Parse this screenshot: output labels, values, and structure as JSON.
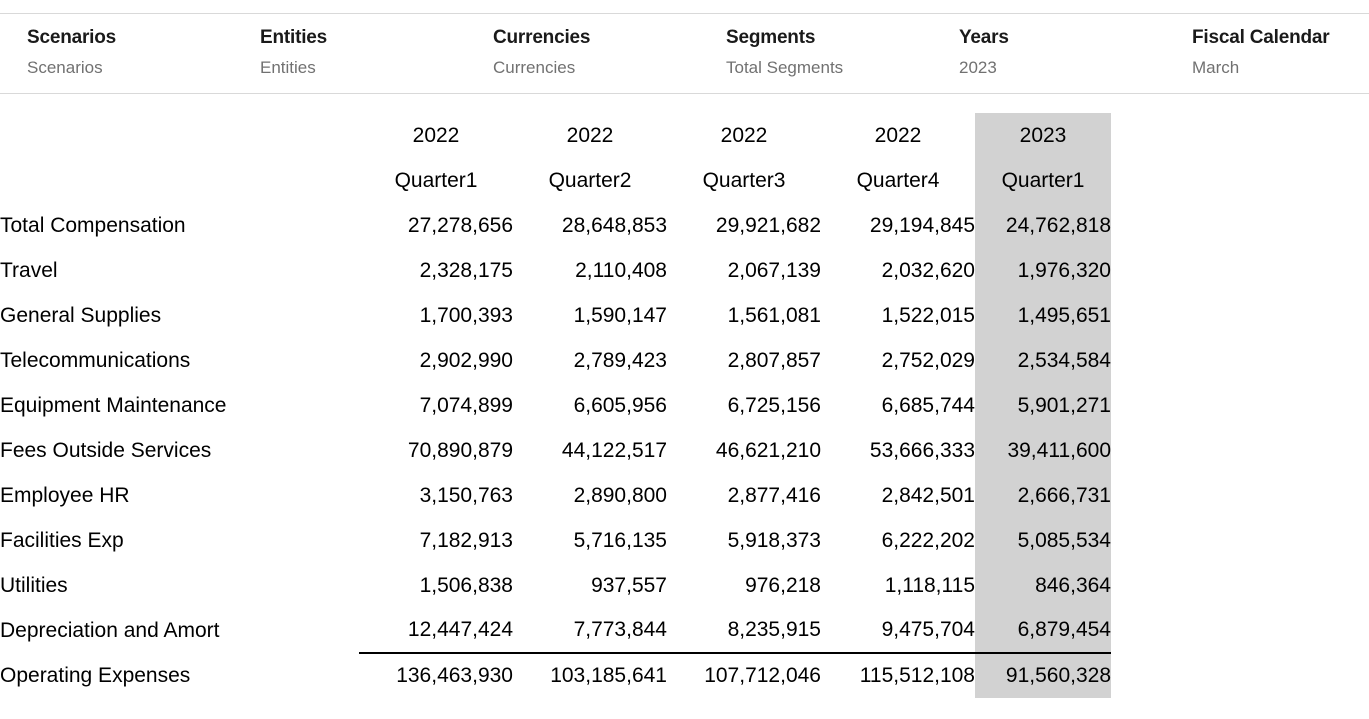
{
  "pov": {
    "items": [
      {
        "id": "scenarios",
        "label": "Scenarios",
        "value": "Scenarios"
      },
      {
        "id": "entities",
        "label": "Entities",
        "value": "Entities"
      },
      {
        "id": "currencies",
        "label": "Currencies",
        "value": "Currencies"
      },
      {
        "id": "segments",
        "label": "Segments",
        "value": "Total Segments"
      },
      {
        "id": "years",
        "label": "Years",
        "value": "2023"
      },
      {
        "id": "fiscal-calendar",
        "label": "Fiscal Calendar",
        "value": "March"
      }
    ]
  },
  "colors": {
    "highlight_column": "#d2d2d2",
    "pov_border": "#d9d9d9",
    "pov_value_text": "#717171",
    "total_rule": "#000000"
  },
  "table": {
    "column_headers": [
      {
        "year": "2022",
        "quarter": "Quarter1",
        "highlight": false
      },
      {
        "year": "2022",
        "quarter": "Quarter2",
        "highlight": false
      },
      {
        "year": "2022",
        "quarter": "Quarter3",
        "highlight": false
      },
      {
        "year": "2022",
        "quarter": "Quarter4",
        "highlight": false
      },
      {
        "year": "2023",
        "quarter": "Quarter1",
        "highlight": true
      }
    ],
    "rows": [
      {
        "label": "Total Compensation",
        "values": [
          "27,278,656",
          "28,648,853",
          "29,921,682",
          "29,194,845",
          "24,762,818"
        ],
        "is_total": false
      },
      {
        "label": "Travel",
        "values": [
          "2,328,175",
          "2,110,408",
          "2,067,139",
          "2,032,620",
          "1,976,320"
        ],
        "is_total": false
      },
      {
        "label": "General Supplies",
        "values": [
          "1,700,393",
          "1,590,147",
          "1,561,081",
          "1,522,015",
          "1,495,651"
        ],
        "is_total": false
      },
      {
        "label": "Telecommunications",
        "values": [
          "2,902,990",
          "2,789,423",
          "2,807,857",
          "2,752,029",
          "2,534,584"
        ],
        "is_total": false
      },
      {
        "label": "Equipment Maintenance",
        "values": [
          "7,074,899",
          "6,605,956",
          "6,725,156",
          "6,685,744",
          "5,901,271"
        ],
        "is_total": false
      },
      {
        "label": "Fees Outside Services",
        "values": [
          "70,890,879",
          "44,122,517",
          "46,621,210",
          "53,666,333",
          "39,411,600"
        ],
        "is_total": false
      },
      {
        "label": "Employee HR",
        "values": [
          "3,150,763",
          "2,890,800",
          "2,877,416",
          "2,842,501",
          "2,666,731"
        ],
        "is_total": false
      },
      {
        "label": "Facilities Exp",
        "values": [
          "7,182,913",
          "5,716,135",
          "5,918,373",
          "6,222,202",
          "5,085,534"
        ],
        "is_total": false
      },
      {
        "label": "Utilities",
        "values": [
          "1,506,838",
          "937,557",
          "976,218",
          "1,118,115",
          "846,364"
        ],
        "is_total": false
      },
      {
        "label": "Depreciation and Amort",
        "values": [
          "12,447,424",
          "7,773,844",
          "8,235,915",
          "9,475,704",
          "6,879,454"
        ],
        "is_total": false
      },
      {
        "label": "Operating Expenses",
        "values": [
          "136,463,930",
          "103,185,641",
          "107,712,046",
          "115,512,108",
          "91,560,328"
        ],
        "is_total": true
      }
    ]
  }
}
